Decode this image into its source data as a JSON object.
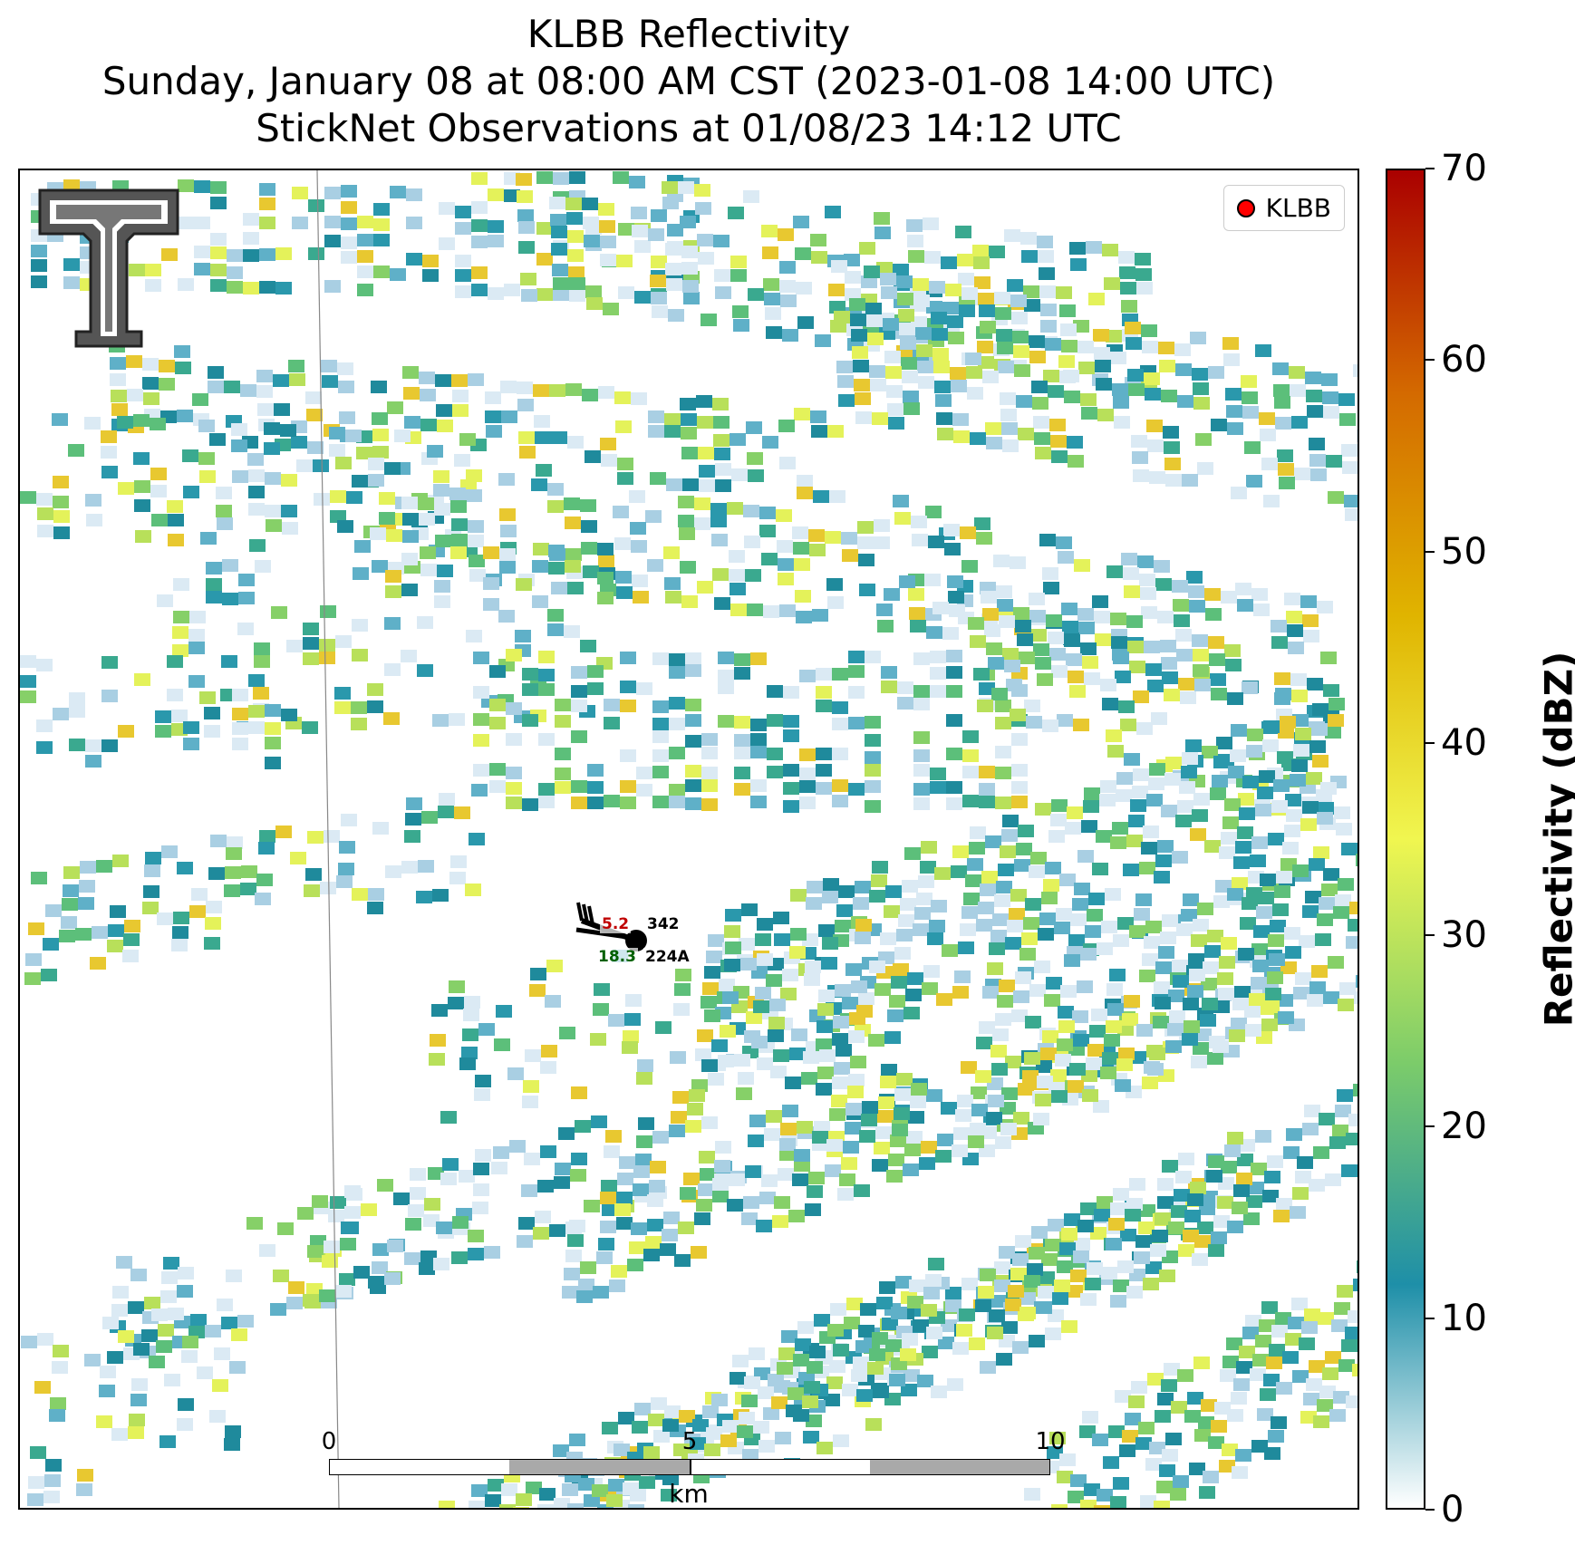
{
  "title": {
    "line1": "KLBB Reflectivity",
    "line2": "Sunday, January 08 at 08:00 AM CST (2023-01-08 14:00 UTC)",
    "line3": "StickNet Observations at 01/08/23 14:12 UTC"
  },
  "legend": {
    "label": "KLBB",
    "marker_color": "#ff0000"
  },
  "colorbar": {
    "label": "Reflectivity (dBZ)",
    "min": 0,
    "max": 70,
    "ticks": [
      "0",
      "10",
      "20",
      "30",
      "40",
      "50",
      "60",
      "70"
    ],
    "colors": [
      "#ffffff",
      "#1e8fa8",
      "#7ccc6a",
      "#f0f650",
      "#e0b400",
      "#d46a00",
      "#aa0000"
    ]
  },
  "scalebar": {
    "labels": [
      "0",
      "5",
      "10"
    ],
    "unit": "km"
  },
  "stations": [
    {
      "id": "342",
      "temp": "5.2",
      "dewpoint": "18.3",
      "id2": "224A"
    }
  ],
  "logo": {
    "name": "texas-tech-double-t-logo"
  }
}
